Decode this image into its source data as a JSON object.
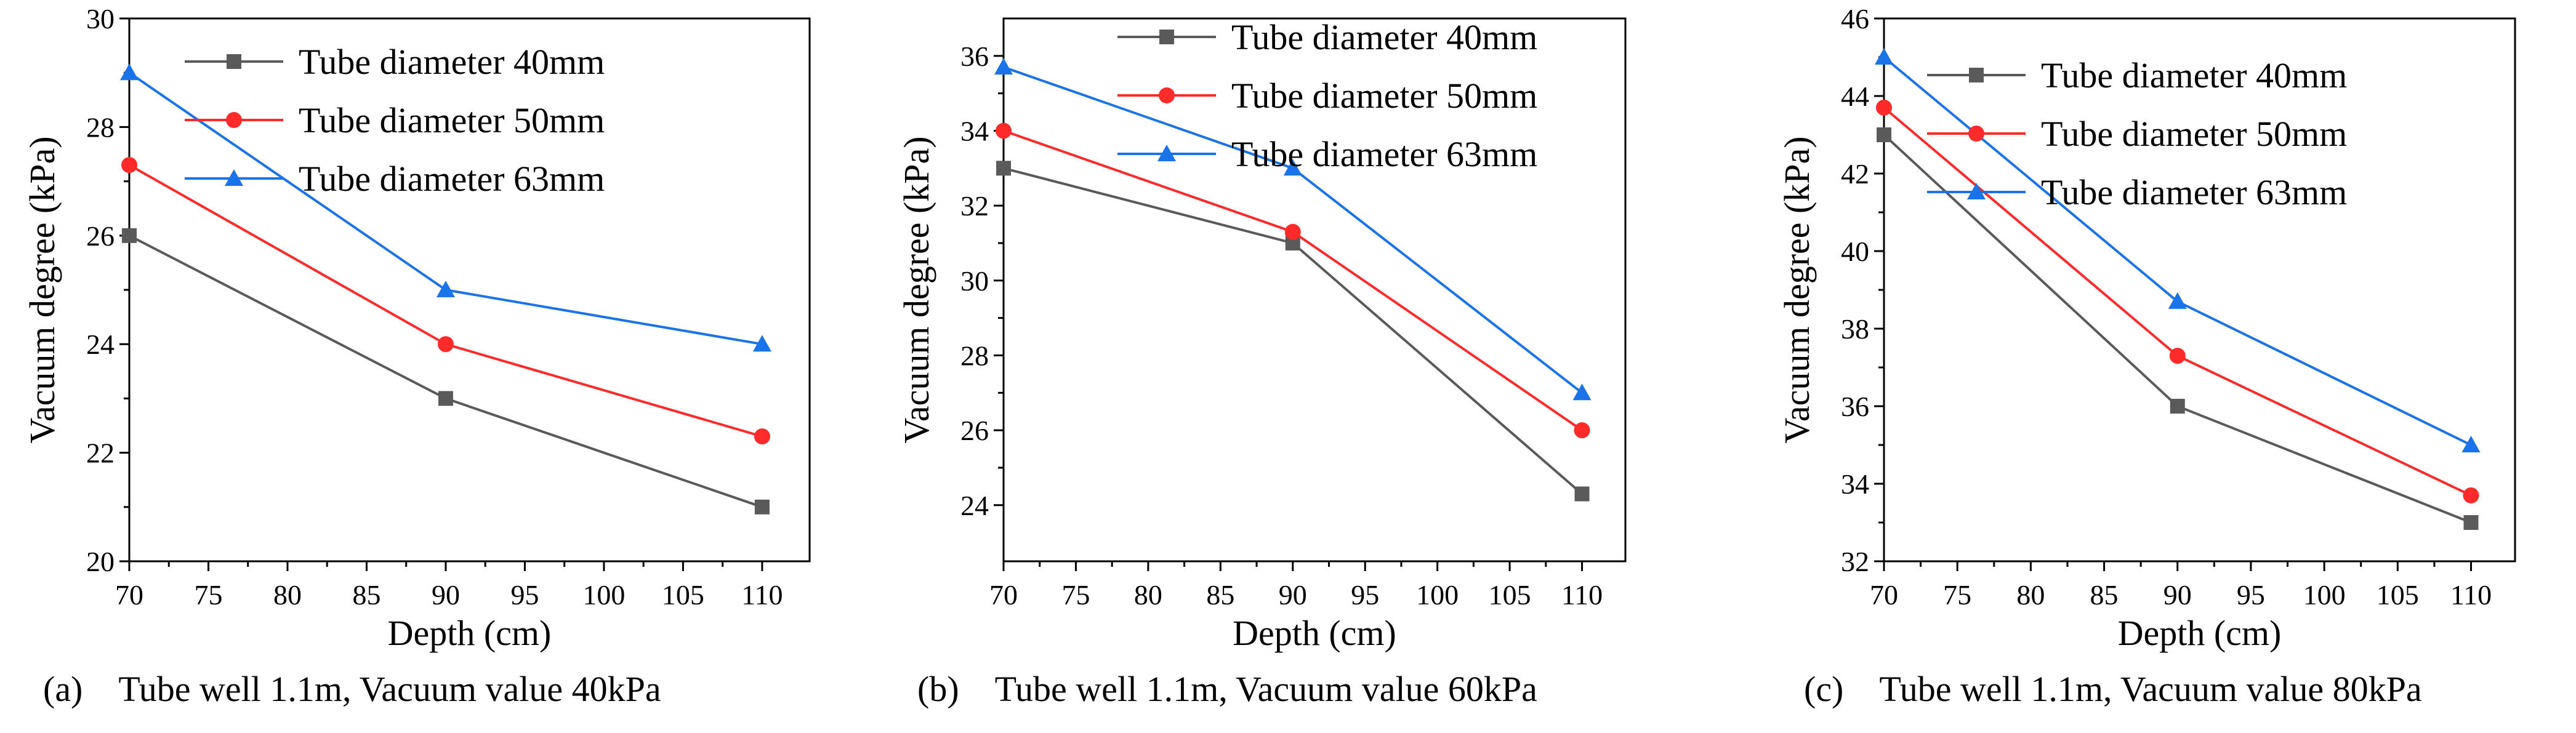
{
  "chart_data": [
    {
      "type": "line",
      "panel": "a",
      "caption": "(a)　Tube well 1.1m, Vacuum value 40kPa",
      "xlabel": "Depth (cm)",
      "ylabel": "Vacuum degree (kPa)",
      "xlim": [
        70,
        113
      ],
      "ylim": [
        20,
        30
      ],
      "xticks": [
        70,
        75,
        80,
        85,
        90,
        95,
        100,
        105,
        110
      ],
      "yticks": [
        20,
        22,
        24,
        26,
        28,
        30
      ],
      "legend_position": "top-right",
      "series": [
        {
          "name": "Tube diameter 40mm",
          "color": "#5a5a5a",
          "marker": "square",
          "x": [
            70,
            90,
            110
          ],
          "y": [
            26.0,
            23.0,
            21.0
          ]
        },
        {
          "name": "Tube diameter 50mm",
          "color": "#ff2a2a",
          "marker": "circle",
          "x": [
            70,
            90,
            110
          ],
          "y": [
            27.3,
            24.0,
            22.3
          ]
        },
        {
          "name": "Tube diameter 63mm",
          "color": "#1a73e8",
          "marker": "triangle",
          "x": [
            70,
            90,
            110
          ],
          "y": [
            29.0,
            25.0,
            24.0
          ]
        }
      ]
    },
    {
      "type": "line",
      "panel": "b",
      "caption": "(b)　Tube well 1.1m, Vacuum value 60kPa",
      "xlabel": "Depth (cm)",
      "ylabel": "Vacuum degree (kPa)",
      "xlim": [
        70,
        113
      ],
      "ylim": [
        22.5,
        37
      ],
      "xticks": [
        70,
        75,
        80,
        85,
        90,
        95,
        100,
        105,
        110
      ],
      "yticks": [
        24,
        26,
        28,
        30,
        32,
        34,
        36
      ],
      "legend_position": "top-right",
      "series": [
        {
          "name": "Tube diameter 40mm",
          "color": "#5a5a5a",
          "marker": "square",
          "x": [
            70,
            90,
            110
          ],
          "y": [
            33.0,
            31.0,
            24.3
          ]
        },
        {
          "name": "Tube diameter 50mm",
          "color": "#ff2a2a",
          "marker": "circle",
          "x": [
            70,
            90,
            110
          ],
          "y": [
            34.0,
            31.3,
            26.0
          ]
        },
        {
          "name": "Tube diameter 63mm",
          "color": "#1a73e8",
          "marker": "triangle",
          "x": [
            70,
            90,
            110
          ],
          "y": [
            35.7,
            33.0,
            27.0
          ]
        }
      ]
    },
    {
      "type": "line",
      "panel": "c",
      "caption": "(c)　Tube well 1.1m, Vacuum value 80kPa",
      "xlabel": "Depth (cm)",
      "ylabel": "Vacuum degree (kPa)",
      "xlim": [
        70,
        113
      ],
      "ylim": [
        32,
        46
      ],
      "xticks": [
        70,
        75,
        80,
        85,
        90,
        95,
        100,
        105,
        110
      ],
      "yticks": [
        32,
        34,
        36,
        38,
        40,
        42,
        44,
        46
      ],
      "legend_position": "top-right",
      "series": [
        {
          "name": "Tube diameter 40mm",
          "color": "#5a5a5a",
          "marker": "square",
          "x": [
            70,
            90,
            110
          ],
          "y": [
            43.0,
            36.0,
            33.0
          ]
        },
        {
          "name": "Tube diameter 50mm",
          "color": "#ff2a2a",
          "marker": "circle",
          "x": [
            70,
            90,
            110
          ],
          "y": [
            43.7,
            37.3,
            33.7
          ]
        },
        {
          "name": "Tube diameter 63mm",
          "color": "#1a73e8",
          "marker": "triangle",
          "x": [
            70,
            90,
            110
          ],
          "y": [
            45.0,
            38.7,
            35.0
          ]
        }
      ]
    }
  ]
}
